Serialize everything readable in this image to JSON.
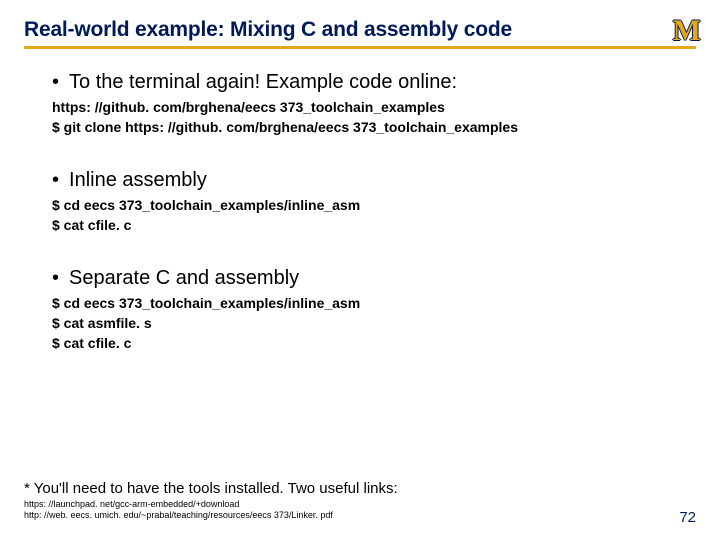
{
  "colors": {
    "title": "#001a57",
    "rule": "#e6a817",
    "logo_fill": "#e6a817",
    "logo_outline": "#001a57",
    "text": "#000000",
    "page_num": "#001a57",
    "background": "#ffffff"
  },
  "fonts": {
    "base_family": "Verdana, Tahoma, Geneva, sans-serif",
    "logo_family": "Georgia, 'Times New Roman', serif",
    "title_size_pt": 16,
    "bullet_size_pt": 15,
    "subline_size_pt": 10.5,
    "footnote_size_pt": 11,
    "small_link_size_pt": 7,
    "pagenum_size_pt": 11
  },
  "logo": "M",
  "title": "Real-world example: Mixing C and assembly code",
  "sections": [
    {
      "bullet": "To the terminal again!  Example code online:",
      "sublines": [
        "https: //github. com/brghena/eecs 373_toolchain_examples",
        "$ git clone https: //github. com/brghena/eecs 373_toolchain_examples"
      ]
    },
    {
      "bullet": "Inline assembly",
      "sublines": [
        "$ cd eecs 373_toolchain_examples/inline_asm",
        "$ cat cfile. c"
      ]
    },
    {
      "bullet": "Separate C and assembly",
      "sublines": [
        "$ cd eecs 373_toolchain_examples/inline_asm",
        "$ cat asmfile. s",
        "$ cat cfile. c"
      ]
    }
  ],
  "footnote": "* You'll need to have the tools installed.  Two useful links:",
  "small_links": [
    "https: //launchpad. net/gcc-arm-embedded/+download",
    "http: //web. eecs. umich. edu/~prabal/teaching/resources/eecs 373/Linker. pdf"
  ],
  "page_number": "72"
}
